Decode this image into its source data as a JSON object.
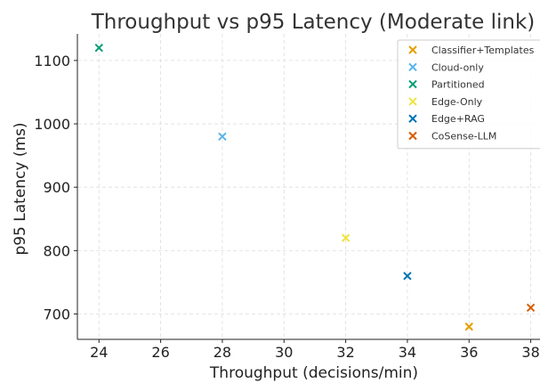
{
  "chart_data": {
    "type": "scatter",
    "title": "Throughput vs p95 Latency (Moderate link)",
    "xlabel": "Throughput (decisions/min)",
    "ylabel": "p95 Latency (ms)",
    "xlim": [
      23.3,
      38.3
    ],
    "ylim": [
      660,
      1142
    ],
    "xticks": [
      24,
      26,
      28,
      30,
      32,
      34,
      36,
      38
    ],
    "yticks": [
      700,
      800,
      900,
      1000,
      1100
    ],
    "grid": true,
    "legend_position": "top-right",
    "marker": "x",
    "series": [
      {
        "name": "Classifier+Templates",
        "color": "#E69F00",
        "x": [
          36
        ],
        "y": [
          680
        ]
      },
      {
        "name": "Cloud-only",
        "color": "#56B4E9",
        "x": [
          28
        ],
        "y": [
          980
        ]
      },
      {
        "name": "Partitioned",
        "color": "#009E73",
        "x": [
          24
        ],
        "y": [
          1120
        ]
      },
      {
        "name": "Edge-Only",
        "color": "#F0E442",
        "x": [
          32
        ],
        "y": [
          820
        ]
      },
      {
        "name": "Edge+RAG",
        "color": "#0072B2",
        "x": [
          34
        ],
        "y": [
          760
        ]
      },
      {
        "name": "CoSense-LLM",
        "color": "#D55E00",
        "x": [
          38
        ],
        "y": [
          710
        ]
      }
    ]
  }
}
